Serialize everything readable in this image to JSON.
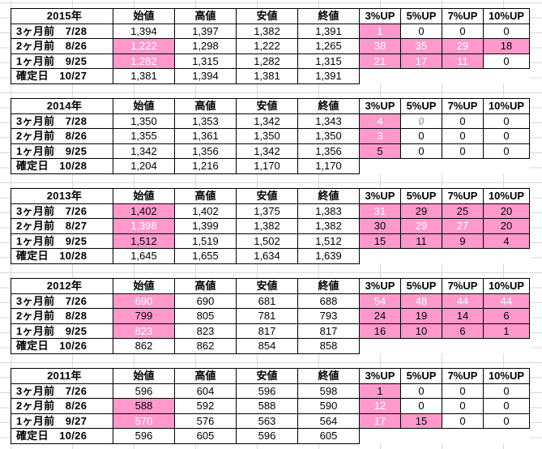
{
  "headers": [
    "始値",
    "高値",
    "安値",
    "終値",
    "3%UP",
    "5%UP",
    "7%UP",
    "10%UP"
  ],
  "tables": [
    {
      "year": "2015年",
      "rows": [
        {
          "label": "3ヶ月前　7/28",
          "values": [
            "1,394",
            "1,397",
            "1,382",
            "1,391",
            "1",
            "0",
            "0",
            "0"
          ]
        },
        {
          "label": "2ヶ月前　8/26",
          "values": [
            "1,222",
            "1,298",
            "1,222",
            "1,265",
            "38",
            "35",
            "29",
            "18"
          ]
        },
        {
          "label": "1ヶ月前　9/25",
          "values": [
            "1,282",
            "1,315",
            "1,282",
            "1,315",
            "21",
            "17",
            "11",
            "0"
          ]
        },
        {
          "label": "確定日　10/27",
          "values": [
            "1,381",
            "1,394",
            "1,381",
            "1,391"
          ]
        }
      ]
    },
    {
      "year": "2014年",
      "rows": [
        {
          "label": "3ヶ月前　7/28",
          "values": [
            "1,350",
            "1,353",
            "1,342",
            "1,343",
            "4",
            "0",
            "0",
            "0"
          ]
        },
        {
          "label": "2ヶ月前　8/26",
          "values": [
            "1,355",
            "1,361",
            "1,350",
            "1,350",
            "3",
            "0",
            "0",
            "0"
          ]
        },
        {
          "label": "1ヶ月前　9/25",
          "values": [
            "1,342",
            "1,356",
            "1,342",
            "1,356",
            "5",
            "0",
            "0",
            "0"
          ]
        },
        {
          "label": "確定日　10/28",
          "values": [
            "1,204",
            "1,216",
            "1,170",
            "1,170"
          ]
        }
      ]
    },
    {
      "year": "2013年",
      "rows": [
        {
          "label": "3ヶ月前　7/26",
          "values": [
            "1,402",
            "1,402",
            "1,375",
            "1,383",
            "31",
            "29",
            "25",
            "20"
          ]
        },
        {
          "label": "2ヶ月前　8/27",
          "values": [
            "1,398",
            "1,399",
            "1,382",
            "1,382",
            "30",
            "29",
            "27",
            "20"
          ]
        },
        {
          "label": "1ヶ月前　9/25",
          "values": [
            "1,512",
            "1,519",
            "1,502",
            "1,512",
            "15",
            "11",
            "9",
            "4"
          ]
        },
        {
          "label": "確定日　10/28",
          "values": [
            "1,645",
            "1,655",
            "1,634",
            "1,639"
          ]
        }
      ]
    },
    {
      "year": "2012年",
      "rows": [
        {
          "label": "3ヶ月前　7/26",
          "values": [
            "690",
            "690",
            "681",
            "688",
            "54",
            "48",
            "44",
            "44"
          ]
        },
        {
          "label": "2ヶ月前　8/28",
          "values": [
            "799",
            "805",
            "781",
            "793",
            "24",
            "19",
            "14",
            "6"
          ]
        },
        {
          "label": "1ヶ月前　9/25",
          "values": [
            "823",
            "823",
            "817",
            "817",
            "16",
            "10",
            "6",
            "1"
          ]
        },
        {
          "label": "確定日　10/26",
          "values": [
            "862",
            "862",
            "854",
            "858"
          ]
        }
      ]
    },
    {
      "year": "2011年",
      "rows": [
        {
          "label": "3ヶ月前　7/26",
          "values": [
            "596",
            "604",
            "596",
            "598",
            "1",
            "0",
            "0",
            "0"
          ]
        },
        {
          "label": "2ヶ月前　8/26",
          "values": [
            "588",
            "592",
            "588",
            "590",
            "12",
            "0",
            "0",
            "0"
          ]
        },
        {
          "label": "1ヶ月前　9/27",
          "values": [
            "570",
            "576",
            "563",
            "564",
            "17",
            "15",
            "0",
            "0"
          ]
        },
        {
          "label": "確定日　10/26",
          "values": [
            "596",
            "605",
            "596",
            "605"
          ]
        }
      ]
    }
  ],
  "highlight_color": "#ff99cc"
}
